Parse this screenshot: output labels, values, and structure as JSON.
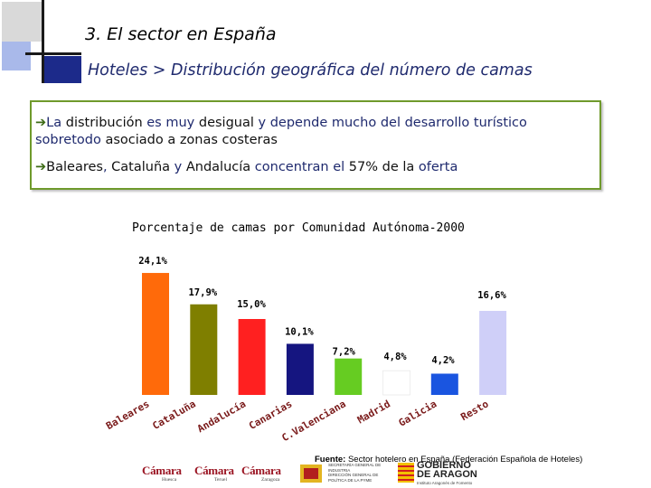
{
  "header": {
    "section_title": "3. El sector en España",
    "subtitle": "Hoteles > Distribución geográfica del número de camas"
  },
  "textbox": {
    "line1_parts": [
      "La ",
      "distribución",
      " es muy ",
      "desigual",
      " y depende mucho del desarrollo turístico"
    ],
    "line2_parts": [
      "sobretodo ",
      "asociado a zonas costeras"
    ],
    "line3_parts": [
      "Baleares",
      ", ",
      "Cataluña",
      " y ",
      "Andalucía",
      " concentran el ",
      "57%",
      " ",
      "de la",
      " oferta"
    ]
  },
  "chart_data": {
    "type": "bar",
    "title": "Porcentaje de camas por Comunidad Autónoma-2000",
    "categories": [
      "Baleares",
      "Cataluña",
      "Andalucía",
      "Canarias",
      "C.Valenciana",
      "Madrid",
      "Galicia",
      "Resto"
    ],
    "values": [
      24.1,
      17.9,
      15.0,
      10.1,
      7.2,
      4.8,
      4.2,
      16.6
    ],
    "value_labels": [
      "24,1%",
      "17,9%",
      "15,0%",
      "10,1%",
      "7,2%",
      "4,8%",
      "4,2%",
      "16,6%"
    ],
    "colors": [
      "#ff6a0a",
      "#7f7f00",
      "#ff2020",
      "#151580",
      "#66cc22",
      "#ffffff",
      "#1a55e0",
      "#cfcff8"
    ],
    "grid": false,
    "legend": "none"
  },
  "footer": {
    "source_label": "Fuente:",
    "source_text": " Sector hotelero en España (Federación Española de Hoteles)",
    "logo1": "Cámara",
    "logo1_sub": "Huesca",
    "logo2": "Cámara",
    "logo2_sub": "Teruel",
    "logo3": "Cámara",
    "logo3_sub": "Zaragoza",
    "ministry_line1": "SECRETARÍA GENERAL DE INDUSTRIA",
    "ministry_line2": "DIRECCIÓN GENERAL DE POLÍTICA DE LA PYME",
    "gov_line1": "GOBIERNO",
    "gov_line2": "DE ARAGON",
    "gov_line3": "Instituto Aragonés de Fomento"
  }
}
